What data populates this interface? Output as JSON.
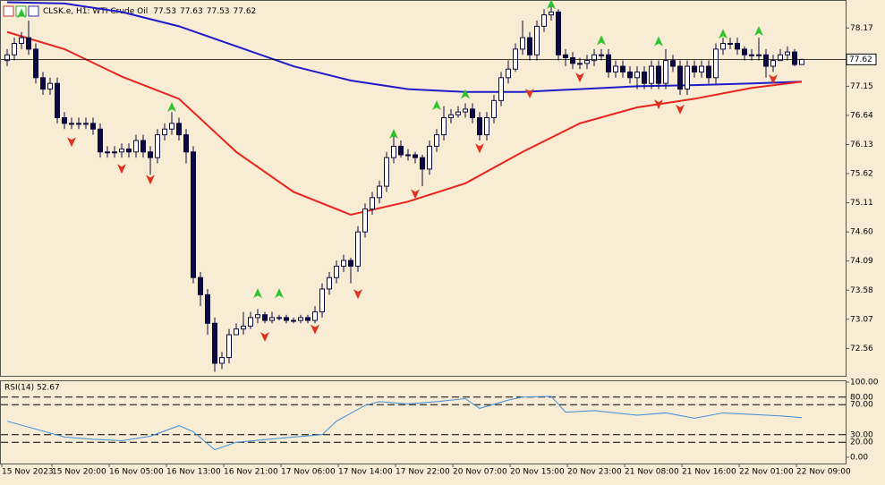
{
  "chart_data": {
    "type": "candlestick",
    "symbol": "CLSK.e, H1: WTI Crude Oil",
    "background": "#f9ecd5",
    "color": "#0b0b40",
    "candles": {
      "open": [
        77.6,
        77.7,
        77.9,
        78.0,
        77.8,
        77.3,
        77.1,
        77.2,
        76.6,
        76.5,
        76.5,
        76.5,
        76.5,
        76.4,
        76.0,
        76.0,
        76.0,
        76.05,
        76.0,
        76.2,
        76.0,
        75.9,
        76.3,
        76.4,
        76.5,
        76.3,
        76.0,
        73.8,
        73.5,
        73.0,
        72.3,
        72.4,
        72.8,
        72.9,
        72.95,
        73.1,
        73.15,
        73.05,
        73.1,
        73.1,
        73.05,
        73.05,
        73.1,
        73.05,
        73.2,
        73.6,
        73.8,
        74.0,
        74.1,
        74.0,
        74.6,
        75.0,
        75.2,
        75.4,
        75.9,
        76.1,
        75.95,
        75.95,
        75.9,
        75.7,
        76.1,
        76.3,
        76.6,
        76.65,
        76.7,
        76.75,
        76.6,
        76.3,
        76.6,
        76.9,
        77.3,
        77.45,
        77.8,
        78.0,
        77.7,
        78.2,
        78.4,
        78.45,
        77.7,
        77.65,
        77.55,
        77.55,
        77.6,
        77.7,
        77.7,
        77.4,
        77.5,
        77.4,
        77.3,
        77.4,
        77.2,
        77.5,
        77.2,
        77.6,
        77.5,
        77.1,
        77.5,
        77.4,
        77.5,
        77.3,
        77.8,
        77.9,
        77.9,
        77.8,
        77.7,
        77.7,
        77.7,
        77.5,
        77.6,
        77.7,
        77.75,
        77.53
      ],
      "high": [
        77.8,
        78.0,
        78.1,
        78.3,
        77.9,
        77.4,
        77.3,
        77.3,
        76.7,
        76.6,
        76.6,
        76.6,
        76.6,
        76.5,
        76.1,
        76.1,
        76.15,
        76.15,
        76.3,
        76.3,
        76.1,
        76.4,
        76.5,
        76.7,
        76.6,
        76.4,
        76.1,
        73.9,
        73.6,
        73.1,
        72.5,
        72.9,
        73.0,
        73.2,
        73.2,
        73.25,
        73.2,
        73.2,
        73.15,
        73.15,
        73.1,
        73.15,
        73.15,
        73.3,
        73.7,
        73.9,
        74.1,
        74.2,
        74.15,
        74.7,
        75.1,
        75.3,
        75.5,
        76.0,
        76.3,
        76.2,
        76.05,
        76.0,
        75.95,
        76.2,
        76.4,
        76.8,
        76.75,
        76.8,
        76.85,
        76.85,
        76.7,
        76.7,
        77.0,
        77.4,
        77.6,
        77.9,
        78.3,
        78.1,
        78.3,
        78.5,
        78.55,
        78.5,
        77.8,
        77.75,
        77.65,
        77.7,
        77.8,
        77.8,
        77.8,
        77.6,
        77.6,
        77.5,
        77.5,
        77.5,
        77.6,
        77.6,
        77.8,
        77.7,
        77.6,
        77.6,
        77.6,
        77.6,
        77.6,
        77.9,
        78.0,
        78.0,
        78.0,
        77.85,
        77.8,
        78.0,
        77.8,
        77.7,
        77.8,
        77.85,
        77.8,
        77.63
      ],
      "low": [
        77.5,
        77.6,
        77.8,
        77.7,
        77.2,
        77.0,
        77.0,
        76.5,
        76.4,
        76.4,
        76.4,
        76.4,
        76.3,
        75.9,
        75.9,
        75.9,
        75.9,
        75.9,
        75.9,
        75.9,
        75.6,
        75.8,
        76.2,
        76.3,
        76.2,
        75.8,
        73.7,
        73.3,
        72.8,
        72.15,
        72.2,
        72.3,
        72.8,
        72.8,
        72.9,
        73.0,
        73.0,
        73.0,
        73.05,
        73.0,
        73.0,
        73.0,
        73.0,
        73.0,
        73.1,
        73.5,
        73.7,
        73.9,
        73.7,
        73.9,
        74.5,
        74.9,
        75.1,
        75.3,
        75.8,
        75.9,
        75.85,
        75.8,
        75.4,
        75.6,
        76.0,
        76.2,
        76.5,
        76.6,
        76.6,
        76.5,
        76.2,
        76.2,
        76.5,
        76.8,
        77.2,
        77.4,
        77.7,
        77.6,
        77.6,
        78.1,
        78.3,
        77.6,
        77.5,
        77.45,
        77.45,
        77.45,
        77.5,
        77.6,
        77.3,
        77.3,
        77.3,
        77.2,
        77.1,
        77.1,
        77.1,
        77.1,
        77.1,
        77.4,
        77.0,
        77.0,
        77.3,
        77.3,
        77.2,
        77.2,
        77.7,
        77.8,
        77.7,
        77.6,
        77.6,
        77.6,
        77.3,
        77.4,
        77.6,
        77.6,
        77.5,
        77.53
      ],
      "close": [
        77.7,
        77.9,
        78.0,
        77.8,
        77.3,
        77.1,
        77.2,
        76.6,
        76.5,
        76.5,
        76.5,
        76.5,
        76.4,
        76.0,
        76.0,
        76.0,
        76.05,
        76.0,
        76.2,
        76.0,
        75.9,
        76.3,
        76.4,
        76.5,
        76.3,
        76.0,
        73.8,
        73.5,
        73.0,
        72.3,
        72.4,
        72.8,
        72.9,
        72.95,
        73.1,
        73.15,
        73.05,
        73.1,
        73.1,
        73.05,
        73.05,
        73.1,
        73.05,
        73.2,
        73.6,
        73.8,
        74.0,
        74.1,
        74.0,
        74.6,
        75.0,
        75.2,
        75.4,
        75.9,
        76.1,
        75.95,
        75.95,
        75.9,
        75.7,
        76.1,
        76.3,
        76.6,
        76.65,
        76.7,
        76.75,
        76.6,
        76.3,
        76.6,
        76.9,
        77.3,
        77.45,
        77.8,
        78.0,
        77.7,
        78.2,
        78.4,
        78.45,
        77.7,
        77.65,
        77.55,
        77.55,
        77.6,
        77.7,
        77.7,
        77.4,
        77.5,
        77.4,
        77.3,
        77.4,
        77.2,
        77.5,
        77.2,
        77.6,
        77.5,
        77.1,
        77.5,
        77.4,
        77.5,
        77.3,
        77.8,
        77.9,
        77.9,
        77.8,
        77.7,
        77.7,
        77.7,
        77.5,
        77.6,
        77.7,
        77.75,
        77.53,
        77.62
      ]
    },
    "ylim": [
      72.08,
      78.66
    ],
    "yticks": [
      78.17,
      77.15,
      76.64,
      76.13,
      75.62,
      75.11,
      {
        "value": 74.6,
        "label": "74.60"
      },
      74.09,
      73.58,
      73.07,
      72.56
    ],
    "xticks": [
      {
        "value": 0,
        "label": "15 Nov 2023"
      },
      {
        "value": 7,
        "label": "15 Nov 20:00"
      },
      {
        "value": 15,
        "label": "16 Nov 05:00"
      },
      {
        "value": 23,
        "label": "16 Nov 13:00"
      },
      {
        "value": 31,
        "label": "16 Nov 21:00"
      },
      {
        "value": 39,
        "label": "17 Nov 06:00"
      },
      {
        "value": 47,
        "label": "17 Nov 14:00"
      },
      {
        "value": 55,
        "label": "17 Nov 22:00"
      },
      {
        "value": 63,
        "label": "20 Nov 07:00"
      },
      {
        "value": 71,
        "label": "20 Nov 15:00"
      },
      {
        "value": 79,
        "label": "20 Nov 23:00"
      },
      {
        "value": 87,
        "label": "21 Nov 08:00"
      },
      {
        "value": 95,
        "label": "21 Nov 16:00"
      },
      {
        "value": 103,
        "label": "22 Nov 01:00"
      },
      {
        "value": 111,
        "label": "22 Nov 09:00"
      }
    ],
    "moving_averages": [
      {
        "color": "#1c1cc8",
        "x": [
          0,
          8,
          16,
          24,
          32,
          40,
          48,
          56,
          64,
          72,
          80,
          88,
          96,
          104,
          111
        ],
        "values": [
          78.62,
          78.6,
          78.45,
          78.2,
          77.85,
          77.5,
          77.25,
          77.1,
          77.05,
          77.05,
          77.1,
          77.15,
          77.17,
          77.2,
          77.23
        ]
      },
      {
        "color": "#e8241c",
        "x": [
          0,
          8,
          16,
          24,
          32,
          40,
          48,
          56,
          64,
          72,
          80,
          88,
          96,
          104,
          111
        ],
        "values": [
          78.1,
          77.8,
          77.32,
          76.93,
          76.0,
          75.3,
          74.9,
          75.13,
          75.45,
          76.0,
          76.5,
          76.78,
          76.93,
          77.12,
          77.23
        ]
      }
    ],
    "fractals": {
      "up": {
        "color": "#2ec42e",
        "x": [
          2,
          23,
          35,
          38,
          54,
          60,
          64,
          76,
          83,
          91,
          100,
          105
        ],
        "values": [
          78.42,
          76.78,
          73.52,
          73.52,
          76.31,
          76.81,
          77.01,
          78.58,
          77.95,
          77.93,
          78.06,
          78.11
        ]
      },
      "down": {
        "color": "#e0301e",
        "x": [
          9,
          16,
          20,
          36,
          43,
          49,
          57,
          66,
          73,
          80,
          91,
          94,
          107
        ],
        "values": [
          76.18,
          75.71,
          75.52,
          72.77,
          72.9,
          73.52,
          75.27,
          76.07,
          77.03,
          77.31,
          76.84,
          76.75,
          77.28
        ]
      }
    },
    "rsi": {
      "label": "RSI(14) 52.67",
      "color": "#3d8fd6",
      "x": [
        0,
        8,
        12,
        16,
        20,
        24,
        26,
        29,
        32,
        40,
        44,
        46,
        50,
        52,
        56,
        60,
        64,
        66,
        70,
        72,
        76,
        78,
        82,
        88,
        92,
        96,
        100,
        104,
        108,
        111
      ],
      "values": [
        48,
        27,
        24,
        22,
        28,
        42,
        34,
        10,
        20,
        27,
        30,
        48,
        69,
        74,
        71,
        74,
        78,
        65,
        76,
        80,
        81,
        60,
        62,
        56,
        59,
        52,
        59,
        57,
        55,
        52.67
      ],
      "ylim": [
        0,
        100
      ],
      "yticks": [
        {
          "value": 100,
          "label": "100.00"
        },
        {
          "value": 80,
          "label": "80.00"
        },
        {
          "value": 70,
          "label": "70.00"
        },
        {
          "value": 30,
          "label": "30.00"
        },
        {
          "value": 20,
          "label": "20.00"
        },
        {
          "value": 0,
          "label": "0.00"
        }
      ]
    }
  }
}
